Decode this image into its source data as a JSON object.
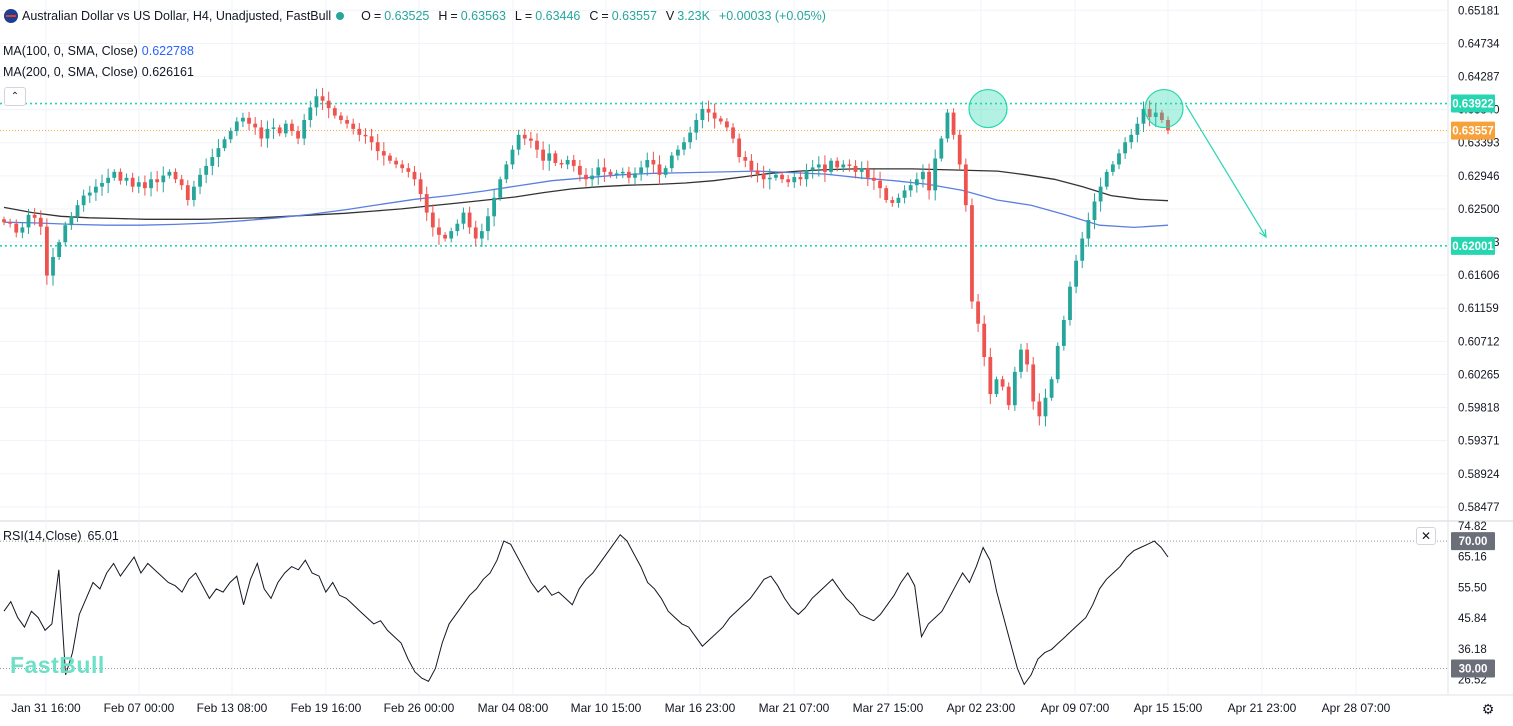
{
  "header": {
    "title": "Australian Dollar vs US Dollar, H4, Unadjusted, FastBull",
    "o_label": "O",
    "o_value": "0.63525",
    "h_label": "H",
    "h_value": "0.63563",
    "l_label": "L",
    "l_value": "0.63446",
    "c_label": "C",
    "c_value": "0.63557",
    "v_label": "V",
    "v_value": "3.23K",
    "change": "+0.00033 (+0.05%)"
  },
  "indicators": {
    "ma100_label": "MA(100, 0, SMA, Close)",
    "ma100_value": "0.622788",
    "ma200_label": "MA(200, 0, SMA, Close)",
    "ma200_value": "0.626161",
    "rsi_label": "RSI(14,Close)",
    "rsi_value": "65.01"
  },
  "watermark": "FastBull",
  "colors": {
    "up": "#26a69a",
    "down": "#ef5350",
    "ma100": "#5b7fe0",
    "ma200": "#333333",
    "level": "#26d6b0",
    "current": "#f7a13a"
  },
  "icons": {
    "collapse": "chevron-up-icon",
    "close": "close-icon",
    "settings": "gear-icon",
    "flag": "australia-flag-icon"
  },
  "chart_data": [
    {
      "type": "candlestick",
      "title": "Australian Dollar vs US Dollar, H4, Unadjusted, FastBull",
      "x_tick_labels": [
        "Jan 31 16:00",
        "Feb 07 00:00",
        "Feb 13 08:00",
        "Feb 19 16:00",
        "Feb 26 00:00",
        "Mar 04 08:00",
        "Mar 10 15:00",
        "Mar 16 23:00",
        "Mar 21 07:00",
        "Mar 27 15:00",
        "Apr 02 23:00",
        "Apr 09 07:00",
        "Apr 15 15:00",
        "Apr 21 23:00",
        "Apr 28 07:00"
      ],
      "y_tick_labels": [
        "0.65181",
        "0.64734",
        "0.64287",
        "0.63840",
        "0.63393",
        "0.62946",
        "0.62500",
        "0.62053",
        "0.61606",
        "0.61159",
        "0.60712",
        "0.60265",
        "0.59818",
        "0.59371",
        "0.58924",
        "0.58477"
      ],
      "ylim": [
        0.583,
        0.6532
      ],
      "price_tags": [
        {
          "label": "0.63922",
          "value": 0.63922,
          "kind": "resistance"
        },
        {
          "label": "0.63557",
          "value": 0.63557,
          "kind": "current"
        },
        {
          "label": "0.62001",
          "value": 0.62001,
          "kind": "support"
        }
      ],
      "horizontal_levels": [
        0.63922,
        0.62001
      ],
      "double_top_markers": [
        "Apr 03",
        "Apr 15"
      ],
      "projection_arrow": {
        "from": [
          0.639,
          "Apr 15"
        ],
        "to": [
          0.6212,
          "Apr 18"
        ]
      },
      "close_path": [
        0.6232,
        0.623,
        0.6218,
        0.6225,
        0.6242,
        0.6238,
        0.6226,
        0.616,
        0.6185,
        0.6205,
        0.6228,
        0.624,
        0.6255,
        0.6268,
        0.6272,
        0.628,
        0.6285,
        0.6292,
        0.63,
        0.6288,
        0.6292,
        0.628,
        0.6286,
        0.6278,
        0.629,
        0.6286,
        0.6295,
        0.63,
        0.629,
        0.6282,
        0.6262,
        0.628,
        0.6296,
        0.6308,
        0.632,
        0.6332,
        0.6344,
        0.6355,
        0.6368,
        0.6373,
        0.6365,
        0.636,
        0.6345,
        0.6358,
        0.636,
        0.6352,
        0.6365,
        0.6355,
        0.6345,
        0.637,
        0.6387,
        0.6402,
        0.6396,
        0.6386,
        0.6376,
        0.637,
        0.6365,
        0.6358,
        0.635,
        0.6348,
        0.634,
        0.6328,
        0.6322,
        0.6315,
        0.631,
        0.6305,
        0.63,
        0.629,
        0.627,
        0.6245,
        0.6225,
        0.6215,
        0.621,
        0.622,
        0.623,
        0.6245,
        0.6225,
        0.621,
        0.622,
        0.624,
        0.6265,
        0.629,
        0.631,
        0.633,
        0.635,
        0.6345,
        0.6342,
        0.633,
        0.6315,
        0.6325,
        0.6312,
        0.631,
        0.6316,
        0.6308,
        0.6296,
        0.629,
        0.6295,
        0.6306,
        0.63,
        0.6296,
        0.6298,
        0.63,
        0.6292,
        0.6298,
        0.6306,
        0.6316,
        0.631,
        0.6296,
        0.6305,
        0.6322,
        0.633,
        0.634,
        0.6353,
        0.637,
        0.6385,
        0.638,
        0.6372,
        0.6368,
        0.636,
        0.6345,
        0.632,
        0.6315,
        0.6302,
        0.6297,
        0.629,
        0.6292,
        0.6296,
        0.629,
        0.6286,
        0.6293,
        0.629,
        0.6302,
        0.6306,
        0.631,
        0.63,
        0.6315,
        0.6306,
        0.631,
        0.6308,
        0.63,
        0.6305,
        0.6292,
        0.6288,
        0.6278,
        0.6262,
        0.6258,
        0.6265,
        0.6275,
        0.6282,
        0.629,
        0.63,
        0.6275,
        0.6318,
        0.6345,
        0.638,
        0.635,
        0.631,
        0.6255,
        0.6125,
        0.6095,
        0.605,
        0.6,
        0.602,
        0.601,
        0.5985,
        0.603,
        0.606,
        0.604,
        0.599,
        0.597,
        0.5995,
        0.602,
        0.6065,
        0.61,
        0.6145,
        0.618,
        0.621,
        0.6235,
        0.626,
        0.628,
        0.63,
        0.631,
        0.6325,
        0.634,
        0.635,
        0.6365,
        0.6385,
        0.6374,
        0.638,
        0.637,
        0.6356
      ],
      "ma100_path": [
        0.6232,
        0.6231,
        0.6229,
        0.6228,
        0.6228,
        0.6229,
        0.6231,
        0.6234,
        0.6238,
        0.6243,
        0.6249,
        0.6256,
        0.6263,
        0.6268,
        0.6274,
        0.6281,
        0.6288,
        0.6292,
        0.6296,
        0.6298,
        0.6299,
        0.63,
        0.6301,
        0.6299,
        0.6297,
        0.6292,
        0.6288,
        0.6283,
        0.6275,
        0.6262,
        0.6255,
        0.6242,
        0.6228,
        0.6225,
        0.6228
      ],
      "ma200_path": [
        0.6252,
        0.6245,
        0.624,
        0.6238,
        0.6237,
        0.6236,
        0.6236,
        0.6236,
        0.6237,
        0.6238,
        0.624,
        0.6242,
        0.6244,
        0.6247,
        0.625,
        0.6254,
        0.6258,
        0.6262,
        0.6266,
        0.6272,
        0.6277,
        0.628,
        0.6282,
        0.6283,
        0.6285,
        0.6288,
        0.6293,
        0.6298,
        0.6301,
        0.6303,
        0.6304,
        0.6304,
        0.6304,
        0.6303,
        0.6302,
        0.6301,
        0.6296,
        0.629,
        0.628,
        0.6268,
        0.6263,
        0.6261
      ]
    },
    {
      "type": "line",
      "title": "RSI(14,Close)",
      "y_tick_labels": [
        "74.82",
        "70.00",
        "65.16",
        "55.50",
        "45.84",
        "36.18",
        "30.00",
        "26.52"
      ],
      "ylim": [
        22,
        76
      ],
      "levels": [
        70,
        30
      ],
      "last_value": 65.01,
      "values": [
        48,
        51,
        46,
        43,
        48,
        46,
        42,
        44,
        61,
        28,
        35,
        47,
        52,
        57,
        55,
        60,
        63,
        59,
        62,
        65,
        60,
        63,
        61,
        59,
        57,
        56,
        54,
        58,
        60,
        56,
        52,
        55,
        54,
        57,
        59,
        50,
        58,
        63,
        55,
        52,
        57,
        60,
        62,
        61,
        64,
        60,
        59,
        54,
        57,
        53,
        52,
        50,
        48,
        46,
        44,
        45,
        42,
        40,
        38,
        33,
        29,
        27,
        26,
        30,
        38,
        44,
        47,
        50,
        53,
        55,
        58,
        60,
        64,
        70,
        69,
        65,
        61,
        57,
        54,
        56,
        53,
        54,
        52,
        50,
        55,
        58,
        60,
        63,
        66,
        69,
        72,
        70,
        66,
        62,
        57,
        55,
        52,
        48,
        46,
        44,
        43,
        40,
        37,
        39,
        41,
        43,
        46,
        48,
        50,
        52,
        55,
        58,
        59,
        56,
        52,
        49,
        47,
        49,
        52,
        54,
        56,
        58,
        55,
        52,
        50,
        47,
        46,
        45,
        47,
        50,
        53,
        57,
        60,
        56,
        40,
        44,
        46,
        48,
        52,
        56,
        60,
        57,
        62,
        68,
        64,
        54,
        46,
        38,
        30,
        25,
        28,
        33,
        35,
        36,
        38,
        40,
        42,
        44,
        46,
        50,
        55,
        58,
        60,
        62,
        65,
        67,
        68,
        69,
        70,
        68,
        65
      ],
      "x_tick_labels": [
        "Jan 31 16:00",
        "Feb 07 00:00",
        "Feb 13 08:00",
        "Feb 19 16:00",
        "Feb 26 00:00",
        "Mar 04 08:00",
        "Mar 10 15:00",
        "Mar 16 23:00",
        "Mar 21 07:00",
        "Mar 27 15:00",
        "Apr 02 23:00",
        "Apr 09 07:00",
        "Apr 15 15:00",
        "Apr 21 23:00",
        "Apr 28 07:00"
      ]
    }
  ]
}
